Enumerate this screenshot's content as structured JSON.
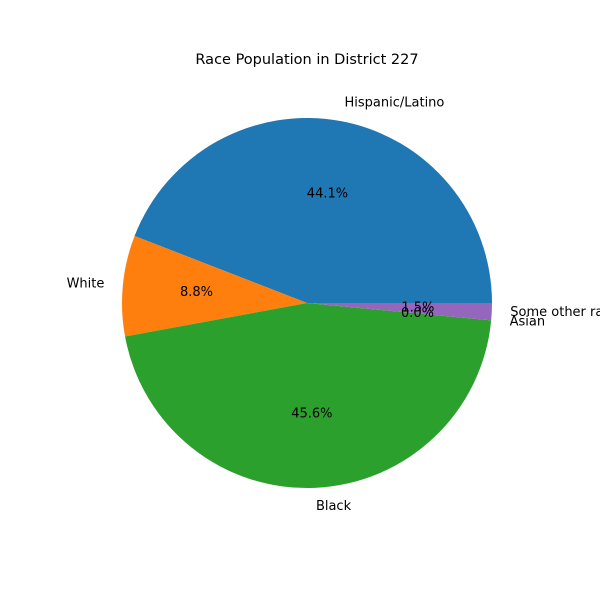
{
  "chart_data": {
    "type": "pie",
    "title": "Race Population in District 227",
    "categories": [
      "Hispanic/Latino",
      "White",
      "Black",
      "Asian",
      "Some other race"
    ],
    "values": [
      44.1,
      8.8,
      45.6,
      0.0,
      1.5
    ],
    "percent_labels": [
      "44.1%",
      "8.8%",
      "45.6%",
      "0.0%",
      "1.5%"
    ],
    "colors": [
      "#1f77b4",
      "#ff7f0e",
      "#2ca02c",
      "#d62728",
      "#9467bd"
    ],
    "start_angle_deg": 0,
    "direction": "counterclockwise",
    "legend": "none"
  }
}
